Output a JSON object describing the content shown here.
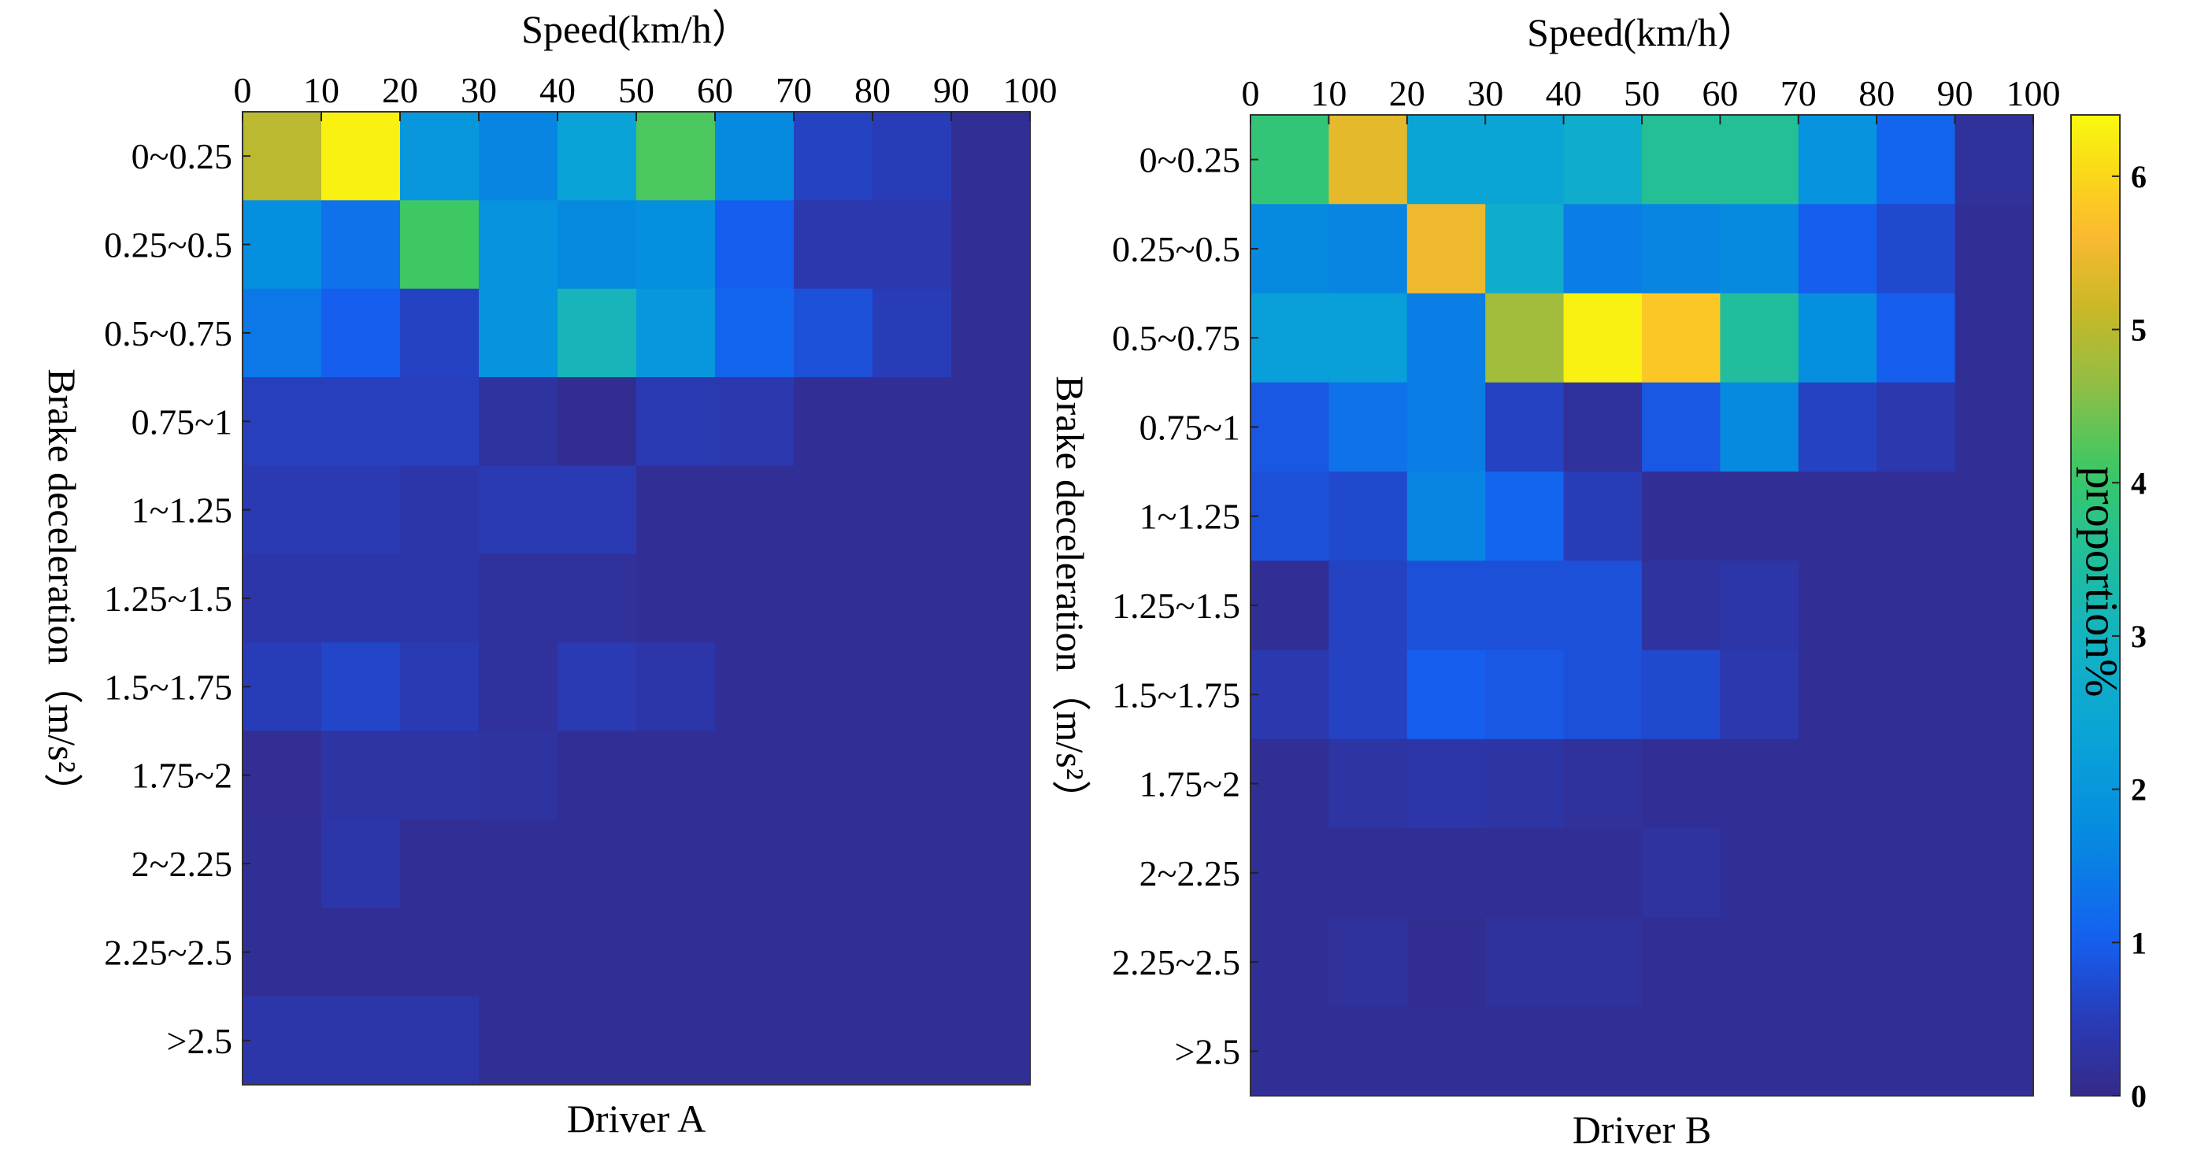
{
  "chart_data": [
    {
      "type": "heatmap",
      "panel": "Driver A",
      "title": "",
      "xlabel": "Driver A",
      "x_axis_title": "Speed(km/h）",
      "ylabel": "Brake deceleration（m/s²）",
      "x_ticks": [
        "0",
        "10",
        "20",
        "30",
        "40",
        "50",
        "60",
        "70",
        "80",
        "90",
        "100"
      ],
      "y_categories": [
        "0~0.25",
        "0.25~0.5",
        "0.5~0.75",
        "0.75~1",
        "1~1.25",
        "1.25~1.5",
        "1.5~1.75",
        "1.75~2",
        "2~2.25",
        "2.25~2.5",
        ">2.5"
      ],
      "values": [
        [
          5.0,
          6.3,
          2.0,
          1.6,
          2.3,
          4.2,
          1.7,
          0.6,
          0.5,
          0.15
        ],
        [
          1.8,
          1.3,
          4.1,
          1.9,
          1.7,
          1.8,
          1.0,
          0.4,
          0.4,
          0.15
        ],
        [
          1.4,
          1.0,
          0.6,
          1.9,
          3.1,
          2.0,
          1.1,
          0.8,
          0.5,
          0.15
        ],
        [
          0.55,
          0.55,
          0.55,
          0.25,
          0.1,
          0.45,
          0.4,
          0.15,
          0.15,
          0.15
        ],
        [
          0.45,
          0.45,
          0.35,
          0.45,
          0.45,
          0.15,
          0.15,
          0.15,
          0.15,
          0.15
        ],
        [
          0.35,
          0.35,
          0.35,
          0.2,
          0.2,
          0.15,
          0.15,
          0.15,
          0.15,
          0.15
        ],
        [
          0.5,
          0.65,
          0.45,
          0.2,
          0.45,
          0.35,
          0.15,
          0.15,
          0.15,
          0.15
        ],
        [
          0.12,
          0.3,
          0.3,
          0.25,
          0.15,
          0.15,
          0.15,
          0.15,
          0.15,
          0.15
        ],
        [
          0.15,
          0.35,
          0.15,
          0.15,
          0.15,
          0.15,
          0.15,
          0.15,
          0.15,
          0.15
        ],
        [
          0.15,
          0.15,
          0.15,
          0.15,
          0.15,
          0.15,
          0.15,
          0.15,
          0.15,
          0.15
        ],
        [
          0.35,
          0.35,
          0.35,
          0.15,
          0.15,
          0.15,
          0.15,
          0.15,
          0.15,
          0.15
        ]
      ]
    },
    {
      "type": "heatmap",
      "panel": "Driver B",
      "title": "",
      "xlabel": "Driver B",
      "x_axis_title": "Speed(km/h）",
      "ylabel": "Brake deceleration（m/s²）",
      "x_ticks": [
        "0",
        "10",
        "20",
        "30",
        "40",
        "50",
        "60",
        "70",
        "80",
        "90",
        "100"
      ],
      "y_categories": [
        "0~0.25",
        "0.25~0.5",
        "0.5~0.75",
        "0.75~1",
        "1~1.25",
        "1.25~1.5",
        "1.5~1.75",
        "1.75~2",
        "2~2.25",
        "2.25~2.5",
        ">2.5"
      ],
      "values": [
        [
          3.9,
          5.4,
          2.4,
          2.4,
          2.7,
          3.6,
          3.6,
          1.9,
          1.1,
          0.2
        ],
        [
          1.7,
          1.6,
          5.5,
          2.7,
          1.5,
          1.6,
          1.7,
          1.0,
          0.7,
          0.15
        ],
        [
          2.2,
          2.2,
          1.5,
          4.8,
          6.3,
          5.8,
          3.5,
          1.8,
          1.0,
          0.15
        ],
        [
          0.9,
          1.3,
          1.5,
          0.6,
          0.2,
          0.9,
          1.7,
          0.6,
          0.4,
          0.15
        ],
        [
          0.8,
          0.7,
          1.6,
          1.1,
          0.5,
          0.15,
          0.15,
          0.15,
          0.15,
          0.15
        ],
        [
          0.15,
          0.6,
          0.8,
          0.8,
          0.8,
          0.25,
          0.35,
          0.15,
          0.15,
          0.15
        ],
        [
          0.4,
          0.6,
          1.0,
          0.9,
          0.8,
          0.7,
          0.4,
          0.15,
          0.15,
          0.15
        ],
        [
          0.15,
          0.3,
          0.35,
          0.3,
          0.2,
          0.15,
          0.15,
          0.15,
          0.15,
          0.15
        ],
        [
          0.15,
          0.15,
          0.15,
          0.15,
          0.15,
          0.25,
          0.15,
          0.15,
          0.15,
          0.15
        ],
        [
          0.15,
          0.2,
          0.1,
          0.2,
          0.2,
          0.15,
          0.15,
          0.15,
          0.15,
          0.15
        ],
        [
          0.15,
          0.15,
          0.15,
          0.15,
          0.15,
          0.15,
          0.15,
          0.15,
          0.15,
          0.15
        ]
      ]
    }
  ],
  "colorbar": {
    "label": "proportion%",
    "ticks": [
      "0",
      "1",
      "2",
      "3",
      "4",
      "5",
      "6"
    ],
    "tick_values": [
      0,
      1,
      2,
      3,
      4,
      5,
      6
    ],
    "range": [
      0,
      6.4
    ],
    "colormap": "parula"
  }
}
